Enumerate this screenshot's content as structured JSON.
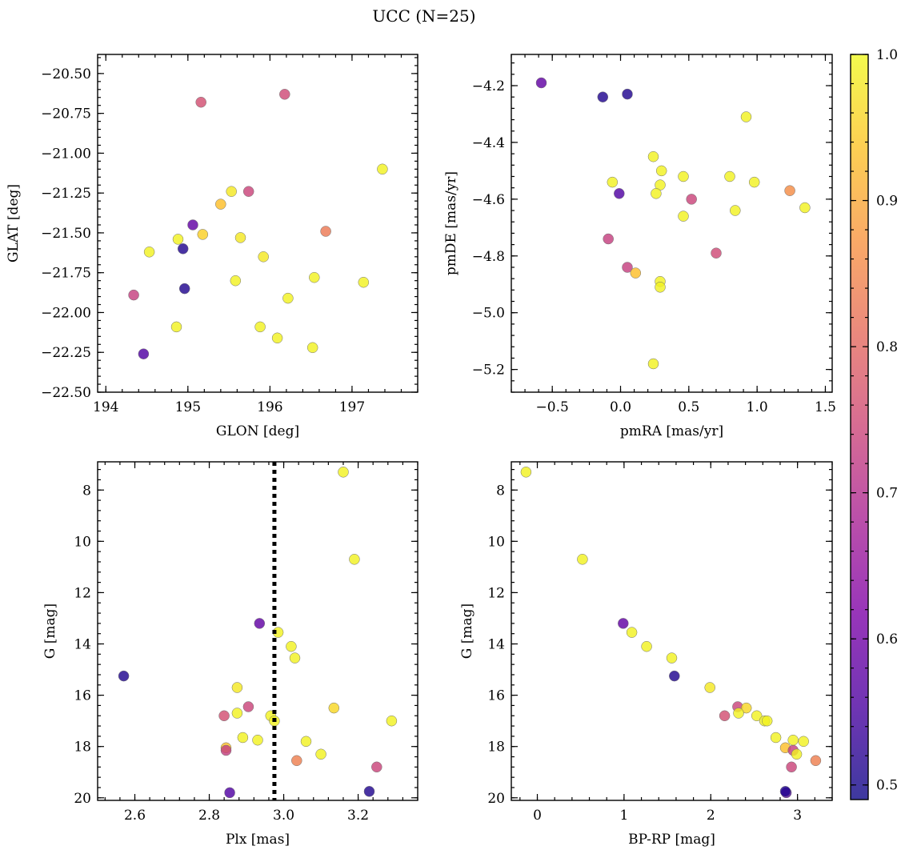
{
  "title": "UCC (N=25)",
  "colormap": {
    "name": "plasma",
    "vmin": 0.49,
    "vmax": 1.0,
    "ticks": [
      0.5,
      0.6,
      0.7,
      0.8,
      0.9,
      1.0
    ],
    "tick_labels": [
      "0.5",
      "0.6",
      "0.7",
      "0.8",
      "0.9",
      "1.0"
    ]
  },
  "chart_data": [
    {
      "type": "scatter",
      "panel": "top-left",
      "xlabel": "GLON [deg]",
      "ylabel": "GLAT [deg]",
      "xlim": [
        193.9,
        197.8
      ],
      "ylim": [
        -22.5,
        -20.38
      ],
      "y_inverted": false,
      "xticks": [
        194,
        195,
        196,
        197
      ],
      "xtick_labels": [
        "194",
        "195",
        "196",
        "197"
      ],
      "yticks": [
        -22.5,
        -22.25,
        -22.0,
        -21.75,
        -21.5,
        -21.25,
        -21.0,
        -20.75,
        -20.5
      ],
      "ytick_labels": [
        "−22.50",
        "−22.25",
        "−22.00",
        "−21.75",
        "−21.50",
        "−21.25",
        "−21.00",
        "−20.75",
        "−20.50"
      ],
      "points": [
        {
          "x": 195.16,
          "y": -20.68,
          "c": 0.76
        },
        {
          "x": 196.18,
          "y": -20.63,
          "c": 0.75
        },
        {
          "x": 197.37,
          "y": -21.1,
          "c": 0.99
        },
        {
          "x": 195.53,
          "y": -21.24,
          "c": 0.98
        },
        {
          "x": 195.74,
          "y": -21.24,
          "c": 0.74
        },
        {
          "x": 195.4,
          "y": -21.32,
          "c": 0.93
        },
        {
          "x": 195.06,
          "y": -21.45,
          "c": 0.58
        },
        {
          "x": 196.68,
          "y": -21.49,
          "c": 0.83
        },
        {
          "x": 195.18,
          "y": -21.51,
          "c": 0.95
        },
        {
          "x": 195.64,
          "y": -21.53,
          "c": 0.98
        },
        {
          "x": 194.88,
          "y": -21.54,
          "c": 0.99
        },
        {
          "x": 194.94,
          "y": -21.6,
          "c": 0.51
        },
        {
          "x": 194.53,
          "y": -21.62,
          "c": 0.99
        },
        {
          "x": 195.92,
          "y": -21.65,
          "c": 0.98
        },
        {
          "x": 196.54,
          "y": -21.78,
          "c": 0.99
        },
        {
          "x": 195.58,
          "y": -21.8,
          "c": 0.99
        },
        {
          "x": 197.14,
          "y": -21.81,
          "c": 0.99
        },
        {
          "x": 194.96,
          "y": -21.85,
          "c": 0.51
        },
        {
          "x": 194.34,
          "y": -21.89,
          "c": 0.73
        },
        {
          "x": 196.22,
          "y": -21.91,
          "c": 0.99
        },
        {
          "x": 194.86,
          "y": -22.09,
          "c": 0.99
        },
        {
          "x": 195.88,
          "y": -22.09,
          "c": 0.99
        },
        {
          "x": 196.09,
          "y": -22.16,
          "c": 0.99
        },
        {
          "x": 196.52,
          "y": -22.22,
          "c": 0.99
        },
        {
          "x": 194.46,
          "y": -22.26,
          "c": 0.56
        }
      ]
    },
    {
      "type": "scatter",
      "panel": "top-right",
      "xlabel": "pmRA [mas/yr]",
      "ylabel": "pmDE [mas/yr]",
      "xlim": [
        -0.8,
        1.55
      ],
      "ylim": [
        -5.28,
        -4.09
      ],
      "y_inverted": false,
      "xticks": [
        -0.5,
        0.0,
        0.5,
        1.0,
        1.5
      ],
      "xtick_labels": [
        "−0.5",
        "0.0",
        "0.5",
        "1.0",
        "1.5"
      ],
      "yticks": [
        -5.2,
        -5.0,
        -4.8,
        -4.6,
        -4.4,
        -4.2
      ],
      "ytick_labels": [
        "−5.2",
        "−5.0",
        "−4.8",
        "−4.6",
        "−4.4",
        "−4.2"
      ],
      "points": [
        {
          "x": -0.58,
          "y": -4.19,
          "c": 0.58
        },
        {
          "x": -0.13,
          "y": -4.24,
          "c": 0.51
        },
        {
          "x": 0.05,
          "y": -4.23,
          "c": 0.51
        },
        {
          "x": 0.92,
          "y": -4.31,
          "c": 0.99
        },
        {
          "x": 0.24,
          "y": -4.45,
          "c": 0.99
        },
        {
          "x": 0.3,
          "y": -4.5,
          "c": 0.99
        },
        {
          "x": 0.46,
          "y": -4.52,
          "c": 0.99
        },
        {
          "x": 0.8,
          "y": -4.52,
          "c": 0.99
        },
        {
          "x": -0.06,
          "y": -4.54,
          "c": 0.99
        },
        {
          "x": 0.98,
          "y": -4.54,
          "c": 0.99
        },
        {
          "x": 0.29,
          "y": -4.55,
          "c": 0.99
        },
        {
          "x": 1.24,
          "y": -4.57,
          "c": 0.86
        },
        {
          "x": 0.26,
          "y": -4.58,
          "c": 0.99
        },
        {
          "x": -0.01,
          "y": -4.58,
          "c": 0.56
        },
        {
          "x": 0.52,
          "y": -4.6,
          "c": 0.74
        },
        {
          "x": 1.35,
          "y": -4.63,
          "c": 0.99
        },
        {
          "x": 0.84,
          "y": -4.64,
          "c": 0.99
        },
        {
          "x": 0.46,
          "y": -4.66,
          "c": 0.99
        },
        {
          "x": -0.09,
          "y": -4.74,
          "c": 0.73
        },
        {
          "x": 0.7,
          "y": -4.79,
          "c": 0.75
        },
        {
          "x": 0.05,
          "y": -4.84,
          "c": 0.73
        },
        {
          "x": 0.11,
          "y": -4.86,
          "c": 0.93
        },
        {
          "x": 0.29,
          "y": -4.89,
          "c": 0.99
        },
        {
          "x": 0.29,
          "y": -4.91,
          "c": 0.99
        },
        {
          "x": 0.24,
          "y": -5.18,
          "c": 0.99
        }
      ]
    },
    {
      "type": "scatter",
      "panel": "bottom-left",
      "xlabel": "Plx [mas]",
      "ylabel": "G [mag]",
      "xlim": [
        2.5,
        3.36
      ],
      "ylim": [
        6.9,
        20.1
      ],
      "y_inverted": true,
      "xticks": [
        2.6,
        2.8,
        3.0,
        3.2
      ],
      "xtick_labels": [
        "2.6",
        "2.8",
        "3.0",
        "3.2"
      ],
      "yticks": [
        8,
        10,
        12,
        14,
        16,
        18,
        20
      ],
      "ytick_labels": [
        "8",
        "10",
        "12",
        "14",
        "16",
        "18",
        "20"
      ],
      "vline": {
        "x": 2.975,
        "style": "dotted"
      },
      "points": [
        {
          "x": 3.16,
          "y": 7.3,
          "c": 0.99
        },
        {
          "x": 3.19,
          "y": 10.7,
          "c": 0.99
        },
        {
          "x": 2.935,
          "y": 13.2,
          "c": 0.58
        },
        {
          "x": 2.985,
          "y": 13.55,
          "c": 0.99
        },
        {
          "x": 3.02,
          "y": 14.1,
          "c": 0.99
        },
        {
          "x": 3.03,
          "y": 14.55,
          "c": 0.99
        },
        {
          "x": 2.57,
          "y": 15.25,
          "c": 0.51
        },
        {
          "x": 2.875,
          "y": 15.7,
          "c": 0.98
        },
        {
          "x": 2.905,
          "y": 16.45,
          "c": 0.74
        },
        {
          "x": 3.135,
          "y": 16.5,
          "c": 0.96
        },
        {
          "x": 2.875,
          "y": 16.7,
          "c": 0.99
        },
        {
          "x": 2.84,
          "y": 16.8,
          "c": 0.76
        },
        {
          "x": 2.965,
          "y": 16.8,
          "c": 0.99
        },
        {
          "x": 2.975,
          "y": 17.0,
          "c": 0.99
        },
        {
          "x": 3.29,
          "y": 17.0,
          "c": 0.99
        },
        {
          "x": 2.89,
          "y": 17.65,
          "c": 0.99
        },
        {
          "x": 2.93,
          "y": 17.75,
          "c": 0.99
        },
        {
          "x": 3.06,
          "y": 17.8,
          "c": 0.99
        },
        {
          "x": 2.845,
          "y": 18.05,
          "c": 0.93
        },
        {
          "x": 2.845,
          "y": 18.15,
          "c": 0.73
        },
        {
          "x": 3.1,
          "y": 18.3,
          "c": 0.99
        },
        {
          "x": 3.035,
          "y": 18.55,
          "c": 0.84
        },
        {
          "x": 3.25,
          "y": 18.8,
          "c": 0.74
        },
        {
          "x": 2.855,
          "y": 19.8,
          "c": 0.56
        },
        {
          "x": 3.23,
          "y": 19.75,
          "c": 0.51
        }
      ]
    },
    {
      "type": "scatter",
      "panel": "bottom-right",
      "xlabel": "BP-RP [mag]",
      "ylabel": "G [mag]",
      "xlim": [
        -0.3,
        3.4
      ],
      "ylim": [
        6.9,
        20.1
      ],
      "y_inverted": true,
      "xticks": [
        0,
        1,
        2,
        3
      ],
      "xtick_labels": [
        "0",
        "1",
        "2",
        "3"
      ],
      "yticks": [
        8,
        10,
        12,
        14,
        16,
        18,
        20
      ],
      "ytick_labels": [
        "8",
        "10",
        "12",
        "14",
        "16",
        "18",
        "20"
      ],
      "points": [
        {
          "x": -0.13,
          "y": 7.3,
          "c": 0.99
        },
        {
          "x": 0.52,
          "y": 10.7,
          "c": 0.99
        },
        {
          "x": 0.99,
          "y": 13.2,
          "c": 0.58
        },
        {
          "x": 1.09,
          "y": 13.55,
          "c": 0.99
        },
        {
          "x": 1.26,
          "y": 14.1,
          "c": 0.99
        },
        {
          "x": 1.55,
          "y": 14.55,
          "c": 0.99
        },
        {
          "x": 1.58,
          "y": 15.25,
          "c": 0.51
        },
        {
          "x": 1.99,
          "y": 15.7,
          "c": 0.98
        },
        {
          "x": 2.31,
          "y": 16.45,
          "c": 0.74
        },
        {
          "x": 2.41,
          "y": 16.5,
          "c": 0.96
        },
        {
          "x": 2.32,
          "y": 16.7,
          "c": 0.99
        },
        {
          "x": 2.16,
          "y": 16.8,
          "c": 0.76
        },
        {
          "x": 2.53,
          "y": 16.8,
          "c": 0.99
        },
        {
          "x": 2.62,
          "y": 17.0,
          "c": 0.99
        },
        {
          "x": 2.65,
          "y": 17.0,
          "c": 0.99
        },
        {
          "x": 2.75,
          "y": 17.65,
          "c": 0.99
        },
        {
          "x": 2.95,
          "y": 17.75,
          "c": 0.99
        },
        {
          "x": 3.07,
          "y": 17.8,
          "c": 0.99
        },
        {
          "x": 2.86,
          "y": 18.05,
          "c": 0.93
        },
        {
          "x": 2.95,
          "y": 18.15,
          "c": 0.73
        },
        {
          "x": 2.99,
          "y": 18.3,
          "c": 0.99
        },
        {
          "x": 3.21,
          "y": 18.55,
          "c": 0.84
        },
        {
          "x": 2.93,
          "y": 18.8,
          "c": 0.74
        },
        {
          "x": 2.87,
          "y": 19.8,
          "c": 0.56
        },
        {
          "x": 2.86,
          "y": 19.75,
          "c": 0.51
        }
      ]
    }
  ]
}
